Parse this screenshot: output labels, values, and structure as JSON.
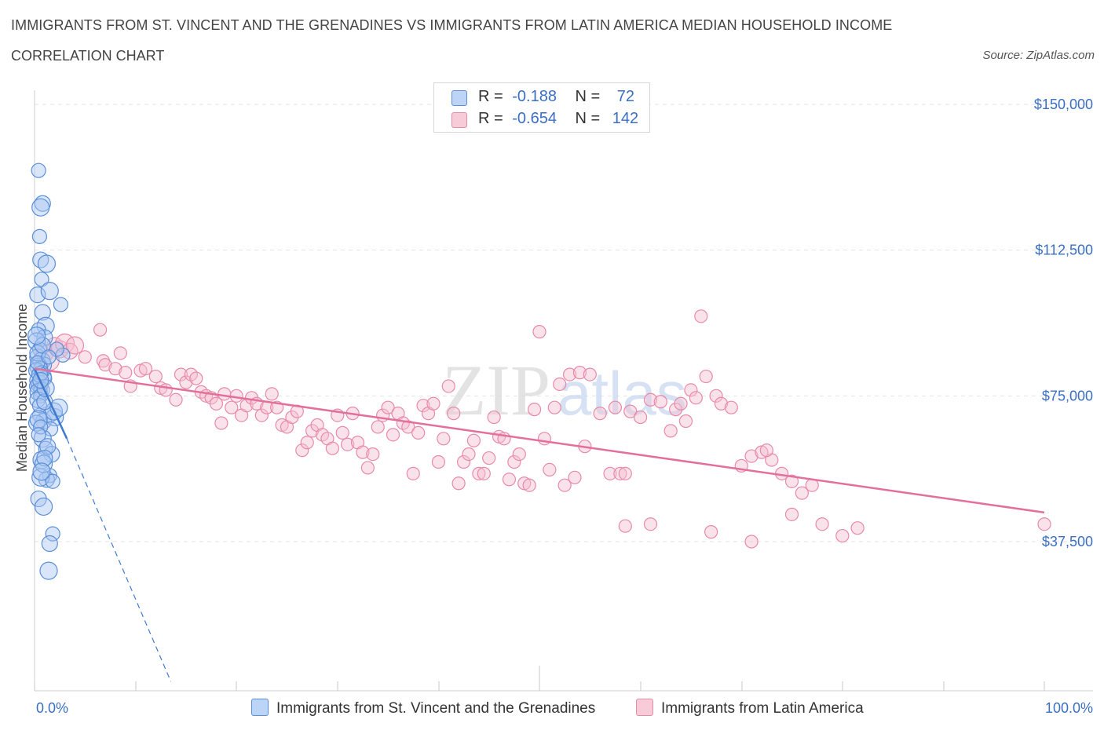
{
  "header": {
    "title": "IMMIGRANTS FROM ST. VINCENT AND THE GRENADINES VS IMMIGRANTS FROM LATIN AMERICA MEDIAN HOUSEHOLD INCOME",
    "subtitle": "CORRELATION CHART",
    "source": "Source: ZipAtlas.com"
  },
  "legend": {
    "series1": {
      "r_label": "R =",
      "r_value": "-0.188",
      "n_label": "N =",
      "n_value": "72"
    },
    "series2": {
      "r_label": "R =",
      "r_value": "-0.654",
      "n_label": "N =",
      "n_value": "142"
    }
  },
  "watermark": {
    "zip": "ZIP",
    "atlas": "atlas"
  },
  "colors": {
    "blue_fill": "#aac8f2",
    "blue_stroke": "#5b8fd9",
    "blue_line": "#3f7ad0",
    "pink_fill": "#f5bfd0",
    "pink_stroke": "#e88aa8",
    "pink_line": "#e3709a",
    "grid": "#e3e3e3",
    "axis_text": "#3a6fc4"
  },
  "chart_data": {
    "type": "scatter",
    "title": "IMMIGRANTS FROM ST. VINCENT AND THE GRENADINES VS IMMIGRANTS FROM LATIN AMERICA MEDIAN HOUSEHOLD INCOME",
    "xlabel": "",
    "ylabel": "Median Household Income",
    "xlim": [
      0,
      100
    ],
    "ylim": [
      0,
      150000
    ],
    "x_tick_labels": [
      "0.0%",
      "100.0%"
    ],
    "y_tick_labels": [
      "$150,000",
      "$112,500",
      "$75,000",
      "$37,500"
    ],
    "y_tick_values": [
      150000,
      112500,
      75000,
      37500
    ],
    "series": [
      {
        "name": "Immigrants from St. Vincent and the Grenadines",
        "color": "#5b8fd9",
        "R": -0.188,
        "N": 72,
        "trend_solid": [
          [
            0,
            82000
          ],
          [
            3.2,
            64000
          ]
        ],
        "trend_dashed": [
          [
            3.2,
            64000
          ],
          [
            13.5,
            1500
          ]
        ],
        "points": [
          [
            0.4,
            133000
          ],
          [
            0.8,
            124500
          ],
          [
            0.6,
            123500
          ],
          [
            0.5,
            116000
          ],
          [
            0.6,
            110000
          ],
          [
            1.2,
            109000
          ],
          [
            0.7,
            105000
          ],
          [
            0.3,
            101000
          ],
          [
            1.5,
            102000
          ],
          [
            2.6,
            98500
          ],
          [
            0.8,
            96500
          ],
          [
            1.1,
            93000
          ],
          [
            0.4,
            92000
          ],
          [
            1.0,
            90000
          ],
          [
            0.2,
            89000
          ],
          [
            0.5,
            87000
          ],
          [
            0.3,
            85000
          ],
          [
            0.7,
            84000
          ],
          [
            2.8,
            85500
          ],
          [
            0.9,
            83000
          ],
          [
            0.4,
            82500
          ],
          [
            0.6,
            82000
          ],
          [
            0.2,
            81500
          ],
          [
            0.8,
            80000
          ],
          [
            1.0,
            79500
          ],
          [
            0.3,
            79000
          ],
          [
            0.5,
            78000
          ],
          [
            0.2,
            77500
          ],
          [
            0.7,
            76500
          ],
          [
            0.4,
            76000
          ],
          [
            0.6,
            75000
          ],
          [
            0.3,
            74000
          ],
          [
            1.3,
            70000
          ],
          [
            0.5,
            70000
          ],
          [
            0.9,
            68500
          ],
          [
            2.0,
            69500
          ],
          [
            1.6,
            66500
          ],
          [
            0.2,
            68000
          ],
          [
            0.8,
            64000
          ],
          [
            1.1,
            61500
          ],
          [
            1.7,
            60000
          ],
          [
            0.7,
            58500
          ],
          [
            1.5,
            54500
          ],
          [
            1.2,
            53500
          ],
          [
            0.6,
            54000
          ],
          [
            1.8,
            53000
          ],
          [
            0.4,
            48500
          ],
          [
            0.9,
            46500
          ],
          [
            1.8,
            39500
          ],
          [
            1.5,
            37000
          ],
          [
            1.4,
            30000
          ],
          [
            2.2,
            87000
          ],
          [
            0.3,
            86000
          ],
          [
            1.9,
            71000
          ],
          [
            0.5,
            72500
          ],
          [
            1.0,
            73500
          ],
          [
            0.4,
            69000
          ],
          [
            0.6,
            67000
          ],
          [
            1.3,
            62000
          ],
          [
            0.9,
            57500
          ],
          [
            0.7,
            81000
          ],
          [
            0.5,
            80500
          ],
          [
            1.1,
            77000
          ],
          [
            0.3,
            83500
          ],
          [
            0.8,
            88000
          ],
          [
            0.2,
            90500
          ],
          [
            1.4,
            85000
          ],
          [
            0.6,
            79000
          ],
          [
            2.4,
            72000
          ],
          [
            0.4,
            65000
          ],
          [
            1.0,
            59000
          ],
          [
            0.7,
            55500
          ]
        ]
      },
      {
        "name": "Immigrants from Latin America",
        "color": "#e88aa8",
        "R": -0.654,
        "N": 142,
        "trend_solid": [
          [
            0,
            82000
          ],
          [
            100,
            45000
          ]
        ],
        "points": [
          [
            0.5,
            78000
          ],
          [
            1.0,
            86000
          ],
          [
            1.5,
            84000
          ],
          [
            2.0,
            88000
          ],
          [
            2.5,
            87000
          ],
          [
            3.0,
            88500
          ],
          [
            3.5,
            86500
          ],
          [
            4.0,
            88000
          ],
          [
            5.0,
            85000
          ],
          [
            6.5,
            92000
          ],
          [
            6.8,
            84000
          ],
          [
            7.0,
            83000
          ],
          [
            8.0,
            82000
          ],
          [
            8.5,
            86000
          ],
          [
            9.0,
            81000
          ],
          [
            9.5,
            77500
          ],
          [
            10.5,
            81500
          ],
          [
            11.0,
            82000
          ],
          [
            12.0,
            80000
          ],
          [
            12.5,
            77000
          ],
          [
            13.0,
            76500
          ],
          [
            14.0,
            74000
          ],
          [
            14.5,
            80500
          ],
          [
            15.0,
            78500
          ],
          [
            15.5,
            80500
          ],
          [
            16.0,
            79500
          ],
          [
            16.5,
            76000
          ],
          [
            17.0,
            75000
          ],
          [
            17.5,
            74500
          ],
          [
            18.0,
            73000
          ],
          [
            18.5,
            68000
          ],
          [
            18.8,
            75500
          ],
          [
            19.5,
            72000
          ],
          [
            20.0,
            75000
          ],
          [
            20.5,
            70000
          ],
          [
            21.0,
            72500
          ],
          [
            21.5,
            74500
          ],
          [
            22.0,
            73000
          ],
          [
            22.5,
            70000
          ],
          [
            23.0,
            72000
          ],
          [
            23.5,
            75500
          ],
          [
            24.0,
            72000
          ],
          [
            24.5,
            67500
          ],
          [
            25.0,
            67000
          ],
          [
            25.5,
            69500
          ],
          [
            26.0,
            71000
          ],
          [
            26.5,
            61000
          ],
          [
            27.0,
            63000
          ],
          [
            27.5,
            66000
          ],
          [
            28.0,
            67500
          ],
          [
            28.5,
            65000
          ],
          [
            29.0,
            64000
          ],
          [
            29.5,
            61500
          ],
          [
            30.0,
            70000
          ],
          [
            30.5,
            65500
          ],
          [
            31.0,
            62500
          ],
          [
            31.5,
            70500
          ],
          [
            32.0,
            63000
          ],
          [
            32.5,
            60500
          ],
          [
            33.0,
            56500
          ],
          [
            33.5,
            60000
          ],
          [
            34.0,
            67000
          ],
          [
            34.5,
            70000
          ],
          [
            35.0,
            72000
          ],
          [
            35.5,
            65000
          ],
          [
            36.0,
            70500
          ],
          [
            36.5,
            68000
          ],
          [
            37.0,
            67000
          ],
          [
            37.5,
            55000
          ],
          [
            38.0,
            65500
          ],
          [
            38.5,
            72500
          ],
          [
            39.0,
            70500
          ],
          [
            39.5,
            73000
          ],
          [
            40.0,
            58000
          ],
          [
            40.5,
            64000
          ],
          [
            41.0,
            77500
          ],
          [
            41.5,
            70500
          ],
          [
            42.0,
            52500
          ],
          [
            42.5,
            58000
          ],
          [
            43.0,
            60000
          ],
          [
            43.5,
            63500
          ],
          [
            44.0,
            55000
          ],
          [
            44.5,
            55000
          ],
          [
            45.0,
            59000
          ],
          [
            45.5,
            69500
          ],
          [
            46.0,
            64500
          ],
          [
            46.5,
            64000
          ],
          [
            47.0,
            53500
          ],
          [
            47.5,
            58000
          ],
          [
            48.0,
            60000
          ],
          [
            48.5,
            52500
          ],
          [
            49.0,
            52000
          ],
          [
            49.5,
            71500
          ],
          [
            50.0,
            91500
          ],
          [
            50.5,
            64000
          ],
          [
            51.0,
            56000
          ],
          [
            51.5,
            72000
          ],
          [
            52.0,
            78000
          ],
          [
            52.5,
            52000
          ],
          [
            53.0,
            80500
          ],
          [
            53.5,
            54000
          ],
          [
            54.0,
            81000
          ],
          [
            54.5,
            62000
          ],
          [
            55.0,
            80500
          ],
          [
            56.0,
            70500
          ],
          [
            57.0,
            55000
          ],
          [
            57.5,
            72000
          ],
          [
            58.0,
            55000
          ],
          [
            58.5,
            55000
          ],
          [
            59.0,
            71000
          ],
          [
            60.0,
            69500
          ],
          [
            61.0,
            74000
          ],
          [
            62.0,
            73500
          ],
          [
            63.0,
            66000
          ],
          [
            63.5,
            71500
          ],
          [
            64.0,
            73000
          ],
          [
            64.5,
            68500
          ],
          [
            65.0,
            76500
          ],
          [
            65.5,
            74500
          ],
          [
            66.0,
            95500
          ],
          [
            66.5,
            80000
          ],
          [
            67.5,
            75000
          ],
          [
            68.0,
            73000
          ],
          [
            69.0,
            72000
          ],
          [
            70.0,
            57000
          ],
          [
            71.0,
            59500
          ],
          [
            72.0,
            60500
          ],
          [
            73.0,
            58500
          ],
          [
            74.0,
            55000
          ],
          [
            75.0,
            53000
          ],
          [
            76.0,
            50000
          ],
          [
            77.0,
            52000
          ],
          [
            67.0,
            40000
          ],
          [
            71.0,
            37500
          ],
          [
            58.5,
            41500
          ],
          [
            61.0,
            42000
          ],
          [
            75.0,
            44500
          ],
          [
            78.0,
            42000
          ],
          [
            80.0,
            39000
          ],
          [
            81.5,
            41000
          ],
          [
            100.0,
            42000
          ],
          [
            72.5,
            61000
          ]
        ]
      }
    ]
  }
}
